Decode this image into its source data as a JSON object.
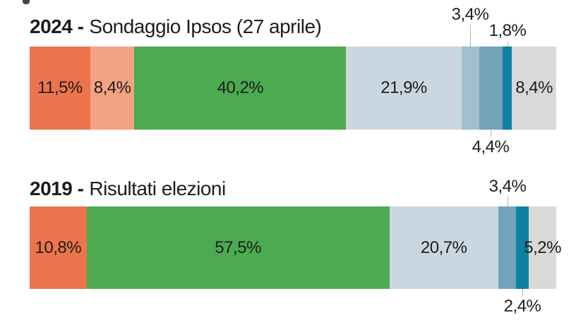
{
  "page": {
    "background_color": "#ffffff",
    "text_color": "#1d1d1b",
    "leader_line_color": "#b3b3b3"
  },
  "chart_data": [
    {
      "type": "bar",
      "orientation": "horizontal-stacked",
      "title_bold": "2024 -",
      "title_rest": "Sondaggio Ipsos (27 aprile)",
      "unit": "%",
      "xlim": [
        0,
        100
      ],
      "segments": [
        {
          "label": "11,5%",
          "value": 11.5,
          "color": "#ed744d",
          "label_placement": "inside"
        },
        {
          "label": "8,4%",
          "value": 8.4,
          "color": "#f3a284",
          "label_placement": "inside"
        },
        {
          "label": "40,2%",
          "value": 40.2,
          "color": "#4caa51",
          "label_placement": "inside"
        },
        {
          "label": "21,9%",
          "value": 21.9,
          "color": "#cbd7e0",
          "label_placement": "inside"
        },
        {
          "label": "3,4%",
          "value": 3.4,
          "color": "#a2bfce",
          "label_placement": "above",
          "callout_row": 1
        },
        {
          "label": "4,4%",
          "value": 4.4,
          "color": "#74a2b9",
          "label_placement": "below"
        },
        {
          "label": "1,8%",
          "value": 1.8,
          "color": "#0e80a4",
          "label_placement": "above",
          "callout_row": 2
        },
        {
          "label": "8,4%",
          "value": 8.4,
          "color": "#d8dad7",
          "label_placement": "inside"
        }
      ]
    },
    {
      "type": "bar",
      "orientation": "horizontal-stacked",
      "title_bold": "2019 -",
      "title_rest": "Risultati elezioni",
      "unit": "%",
      "xlim": [
        0,
        100
      ],
      "segments": [
        {
          "label": "10,8%",
          "value": 10.8,
          "color": "#ed744d",
          "label_placement": "inside"
        },
        {
          "label": "57,5%",
          "value": 57.5,
          "color": "#4caa51",
          "label_placement": "inside"
        },
        {
          "label": "20,7%",
          "value": 20.7,
          "color": "#cbd7e0",
          "label_placement": "inside"
        },
        {
          "label": "3,4%",
          "value": 3.4,
          "color": "#74a2b9",
          "label_placement": "above",
          "callout_row": 1
        },
        {
          "label": "2,4%",
          "value": 2.4,
          "color": "#0e80a4",
          "label_placement": "below"
        },
        {
          "label": "5,2%",
          "value": 5.2,
          "color": "#d8dad7",
          "label_placement": "inside"
        }
      ]
    }
  ]
}
